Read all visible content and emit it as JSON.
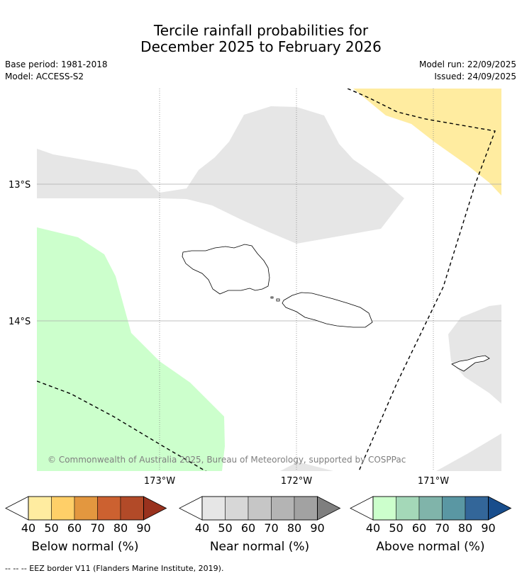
{
  "title": {
    "line1": "Tercile rainfall probabilities for",
    "line2": "December 2025 to February 2026"
  },
  "meta_left": {
    "base_period": "Base period: 1981-2018",
    "model": "Model: ACCESS-S2"
  },
  "meta_right": {
    "model_run": "Model run: 22/09/2025",
    "issued": "Issued: 24/09/2025"
  },
  "map": {
    "lat_labels": [
      "13°S",
      "14°S"
    ],
    "lon_labels": [
      "173°W",
      "172°W",
      "171°W"
    ],
    "copyright": "© Commonwealth of Australia 2025, Bureau of Meteorology, supported by COSPPac",
    "regions": [
      {
        "name": "below-normal-region",
        "category": "below",
        "probability": "40-50"
      },
      {
        "name": "near-normal-region-north",
        "category": "near",
        "probability": "40-50"
      },
      {
        "name": "near-normal-region-east",
        "category": "near",
        "probability": "40-50"
      },
      {
        "name": "near-normal-region-south",
        "category": "near",
        "probability": "40-50"
      },
      {
        "name": "above-normal-region",
        "category": "above",
        "probability": "40-50"
      }
    ]
  },
  "colorbars": [
    {
      "label": "Below normal (%)",
      "ticks": [
        "40",
        "50",
        "60",
        "70",
        "80",
        "90"
      ],
      "colors": [
        "#ffeca0",
        "#ffcf68",
        "#e3973f",
        "#cc6130",
        "#b24a28",
        "#99321e"
      ]
    },
    {
      "label": "Near normal (%)",
      "ticks": [
        "40",
        "50",
        "60",
        "70",
        "80",
        "90"
      ],
      "colors": [
        "#e6e6e6",
        "#d7d7d7",
        "#c6c6c6",
        "#b4b4b4",
        "#a2a2a2",
        "#7f7f7f"
      ]
    },
    {
      "label": "Above normal (%)",
      "ticks": [
        "40",
        "50",
        "60",
        "70",
        "80",
        "90"
      ],
      "colors": [
        "#ccffcc",
        "#a4d8b8",
        "#80b4aa",
        "#5a97a3",
        "#336699",
        "#184d8c"
      ]
    }
  ],
  "footer": "--  --  -- EEZ border V11 (Flanders Marine Institute, 2019)."
}
